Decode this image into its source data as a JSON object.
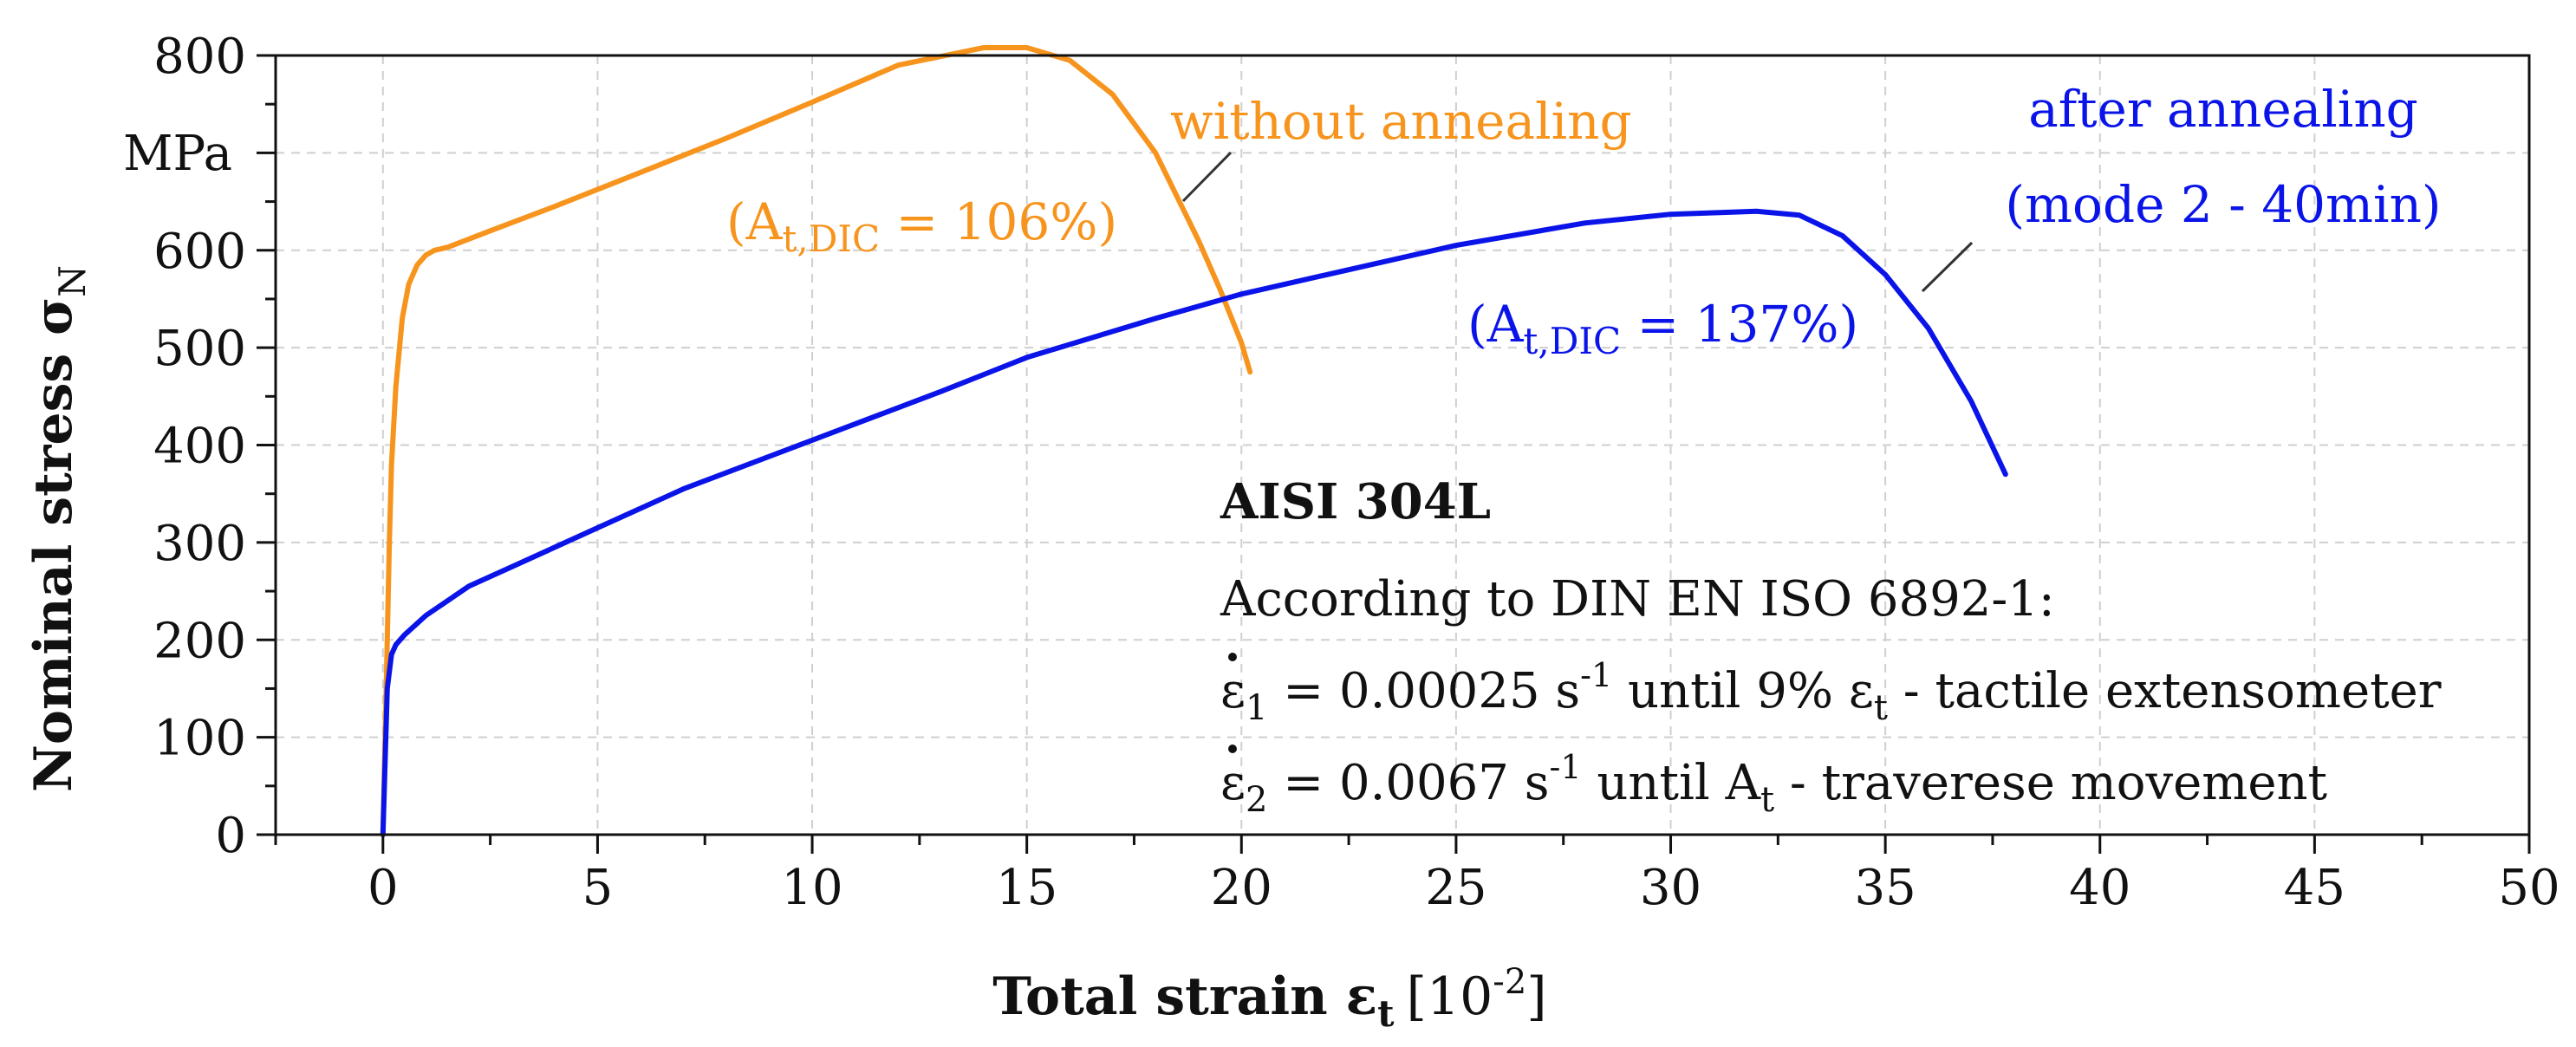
{
  "chart_data": {
    "type": "line",
    "xlabel": {
      "main": "Total strain ε",
      "sub": "t",
      "unit_pre": "[10",
      "unit_sup": "-2",
      "unit_post": "]"
    },
    "ylabel": {
      "main": "Nominal stress σ",
      "sub": "N"
    },
    "yunit": "MPa",
    "xlim": [
      -2.5,
      50
    ],
    "ylim": [
      0,
      800
    ],
    "x_ticks": [
      0,
      5,
      10,
      15,
      20,
      25,
      30,
      35,
      40,
      45,
      50
    ],
    "x_tick_labels": [
      "0",
      "5",
      "10",
      "15",
      "20",
      "25",
      "30",
      "35",
      "40",
      "45",
      "50"
    ],
    "y_ticks": [
      0,
      100,
      200,
      300,
      400,
      500,
      600,
      700,
      800
    ],
    "y_tick_labels": [
      "0",
      "100",
      "200",
      "300",
      "400",
      "500",
      "600",
      "",
      "800"
    ],
    "grid": true,
    "series": [
      {
        "name": "without annealing",
        "color": "#f7941d",
        "x": [
          0,
          0.05,
          0.1,
          0.15,
          0.2,
          0.3,
          0.45,
          0.6,
          0.8,
          1.0,
          1.2,
          1.5,
          2.5,
          4,
          6,
          8,
          10,
          12,
          14,
          15,
          16,
          17,
          18,
          19,
          19.5,
          20,
          20.2
        ],
        "y": [
          0,
          100,
          200,
          300,
          380,
          460,
          530,
          565,
          585,
          595,
          600,
          603,
          620,
          645,
          680,
          715,
          752,
          790,
          808,
          808,
          795,
          760,
          700,
          610,
          560,
          505,
          475
        ]
      },
      {
        "name": "after annealing",
        "color": "#0a14e8",
        "x": [
          0,
          0.1,
          0.2,
          0.3,
          0.5,
          1,
          2,
          3,
          5,
          7,
          10,
          13,
          15,
          18,
          20,
          22,
          25,
          28,
          30,
          32,
          33,
          34,
          35,
          36,
          37,
          37.8
        ],
        "y": [
          0,
          150,
          185,
          195,
          205,
          225,
          255,
          275,
          315,
          355,
          405,
          455,
          490,
          530,
          555,
          575,
          605,
          628,
          637,
          640,
          636,
          615,
          575,
          520,
          445,
          370
        ]
      }
    ],
    "annotations": {
      "orange_label": "without annealing",
      "orange_at_pre": "(A",
      "orange_at_sub": "t,DIC",
      "orange_at_post": " = 106%)",
      "blue_label_1": "after annealing",
      "blue_label_2": "(mode 2 - 40min)",
      "blue_at_pre": "(A",
      "blue_at_sub": "t,DIC",
      "blue_at_post": " = 137%)",
      "material": "AISI 304L",
      "standard": "According to DIN EN ISO 6892-1:",
      "rate1_sym": "ε",
      "rate1_sub": "1",
      "rate1_mid": " = 0.00025 s",
      "rate1_sup": "-1",
      "rate1_a": " until 9% ε",
      "rate1_sub2": "t",
      "rate1_b": " -  tactile extensometer",
      "rate2_sym": "ε",
      "rate2_sub": "2",
      "rate2_mid": " = 0.0067 s",
      "rate2_sup": "-1",
      "rate2_a": " until A",
      "rate2_sub2": "t",
      "rate2_b": " - traverese movement"
    },
    "text_color": "#111111"
  }
}
